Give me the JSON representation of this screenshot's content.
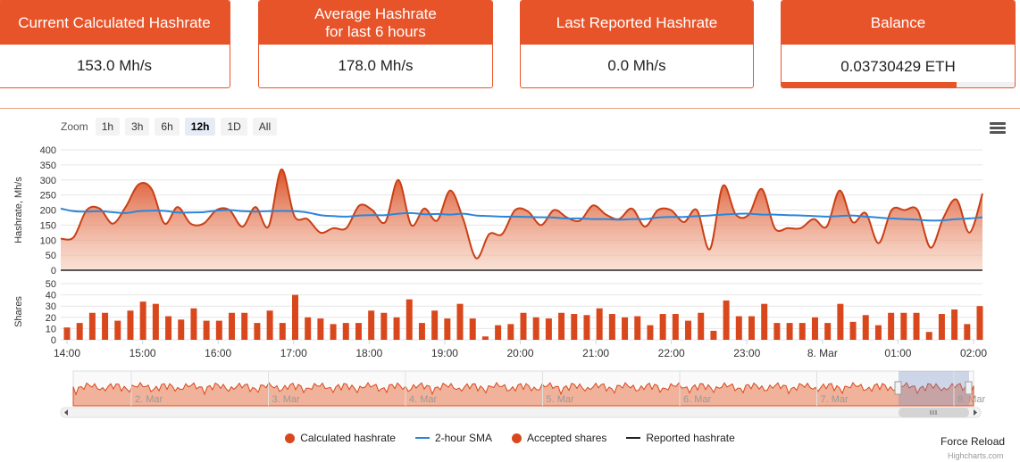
{
  "cards": [
    {
      "title": "Current Calculated Hashrate",
      "value": "153.0 Mh/s"
    },
    {
      "title": "Average Hashrate for last 6 hours",
      "value": "178.0 Mh/s"
    },
    {
      "title": "Last Reported Hashrate",
      "value": "0.0 Mh/s"
    },
    {
      "title": "Balance",
      "value": "0.03730429 ETH"
    }
  ],
  "zoom": {
    "label": "Zoom",
    "buttons": [
      "1h",
      "3h",
      "6h",
      "12h",
      "1D",
      "All"
    ],
    "selected": "12h"
  },
  "colors": {
    "accent": "#e8542a",
    "calc": "#d9481c",
    "sma": "#2b86d9",
    "reported": "#222222"
  },
  "chart_data": [
    {
      "type": "area",
      "ylabel": "Hashrate, Mh/s",
      "ylim": [
        0,
        400
      ],
      "yticks": [
        0,
        50,
        100,
        150,
        200,
        250,
        300,
        350,
        400
      ],
      "xticks": [
        "14:00",
        "15:00",
        "16:00",
        "17:00",
        "18:00",
        "19:00",
        "20:00",
        "21:00",
        "22:00",
        "23:00",
        "8. Mar",
        "01:00",
        "02:00"
      ],
      "series": [
        {
          "name": "Calculated hashrate",
          "values": [
            105,
            110,
            200,
            205,
            155,
            210,
            285,
            270,
            155,
            210,
            155,
            155,
            200,
            200,
            145,
            210,
            145,
            335,
            180,
            170,
            125,
            140,
            140,
            215,
            200,
            160,
            300,
            150,
            205,
            165,
            265,
            170,
            40,
            120,
            120,
            200,
            195,
            150,
            200,
            175,
            165,
            215,
            185,
            170,
            205,
            145,
            200,
            200,
            160,
            200,
            70,
            280,
            185,
            185,
            270,
            140,
            140,
            140,
            170,
            145,
            265,
            160,
            190,
            90,
            200,
            200,
            200,
            75,
            175,
            235,
            125,
            255
          ]
        },
        {
          "name": "2-hour SMA",
          "values": [
            205,
            196,
            195,
            196,
            193,
            190,
            196,
            198,
            197,
            192,
            192,
            193,
            198,
            200,
            196,
            195,
            196,
            197,
            196,
            192,
            183,
            180,
            178,
            182,
            183,
            183,
            188,
            190,
            186,
            187,
            185,
            188,
            182,
            180,
            178,
            178,
            177,
            176,
            175,
            172,
            172,
            170,
            170,
            168,
            170,
            170,
            175,
            177,
            177,
            180,
            182,
            185,
            187,
            188,
            185,
            185,
            183,
            182,
            180,
            178,
            180,
            182,
            178,
            175,
            172,
            170,
            168,
            165,
            166,
            170,
            172,
            176
          ]
        }
      ]
    },
    {
      "type": "bar",
      "ylabel": "Shares",
      "ylim": [
        0,
        50
      ],
      "yticks": [
        0,
        10,
        20,
        30,
        40,
        50
      ],
      "series": [
        {
          "name": "Accepted shares",
          "values": [
            11,
            15,
            24,
            24,
            17,
            26,
            34,
            32,
            21,
            18,
            28,
            17,
            17,
            24,
            24,
            15,
            26,
            15,
            40,
            20,
            19,
            14,
            15,
            15,
            26,
            24,
            20,
            36,
            15,
            26,
            19,
            32,
            19,
            3,
            13,
            14,
            24,
            20,
            19,
            24,
            23,
            22,
            28,
            23,
            20,
            21,
            13,
            23,
            23,
            17,
            24,
            8,
            35,
            21,
            21,
            32,
            15,
            15,
            15,
            20,
            15,
            32,
            16,
            22,
            13,
            24,
            24,
            24,
            7,
            23,
            27,
            14,
            30
          ]
        }
      ]
    },
    {
      "type": "area",
      "role": "navigator",
      "xticks": [
        "2. Mar",
        "3. Mar",
        "4. Mar",
        "5. Mar",
        "6. Mar",
        "7. Mar",
        "8. Mar"
      ]
    }
  ],
  "legend": [
    {
      "label": "Calculated hashrate",
      "kind": "dot",
      "color": "#d9481c"
    },
    {
      "label": "2-hour SMA",
      "kind": "line",
      "color": "#2b86d9"
    },
    {
      "label": "Accepted shares",
      "kind": "dot",
      "color": "#d9481c"
    },
    {
      "label": "Reported hashrate",
      "kind": "line",
      "color": "#222222"
    }
  ],
  "force_reload": "Force Reload",
  "credits": "Highcharts.com"
}
